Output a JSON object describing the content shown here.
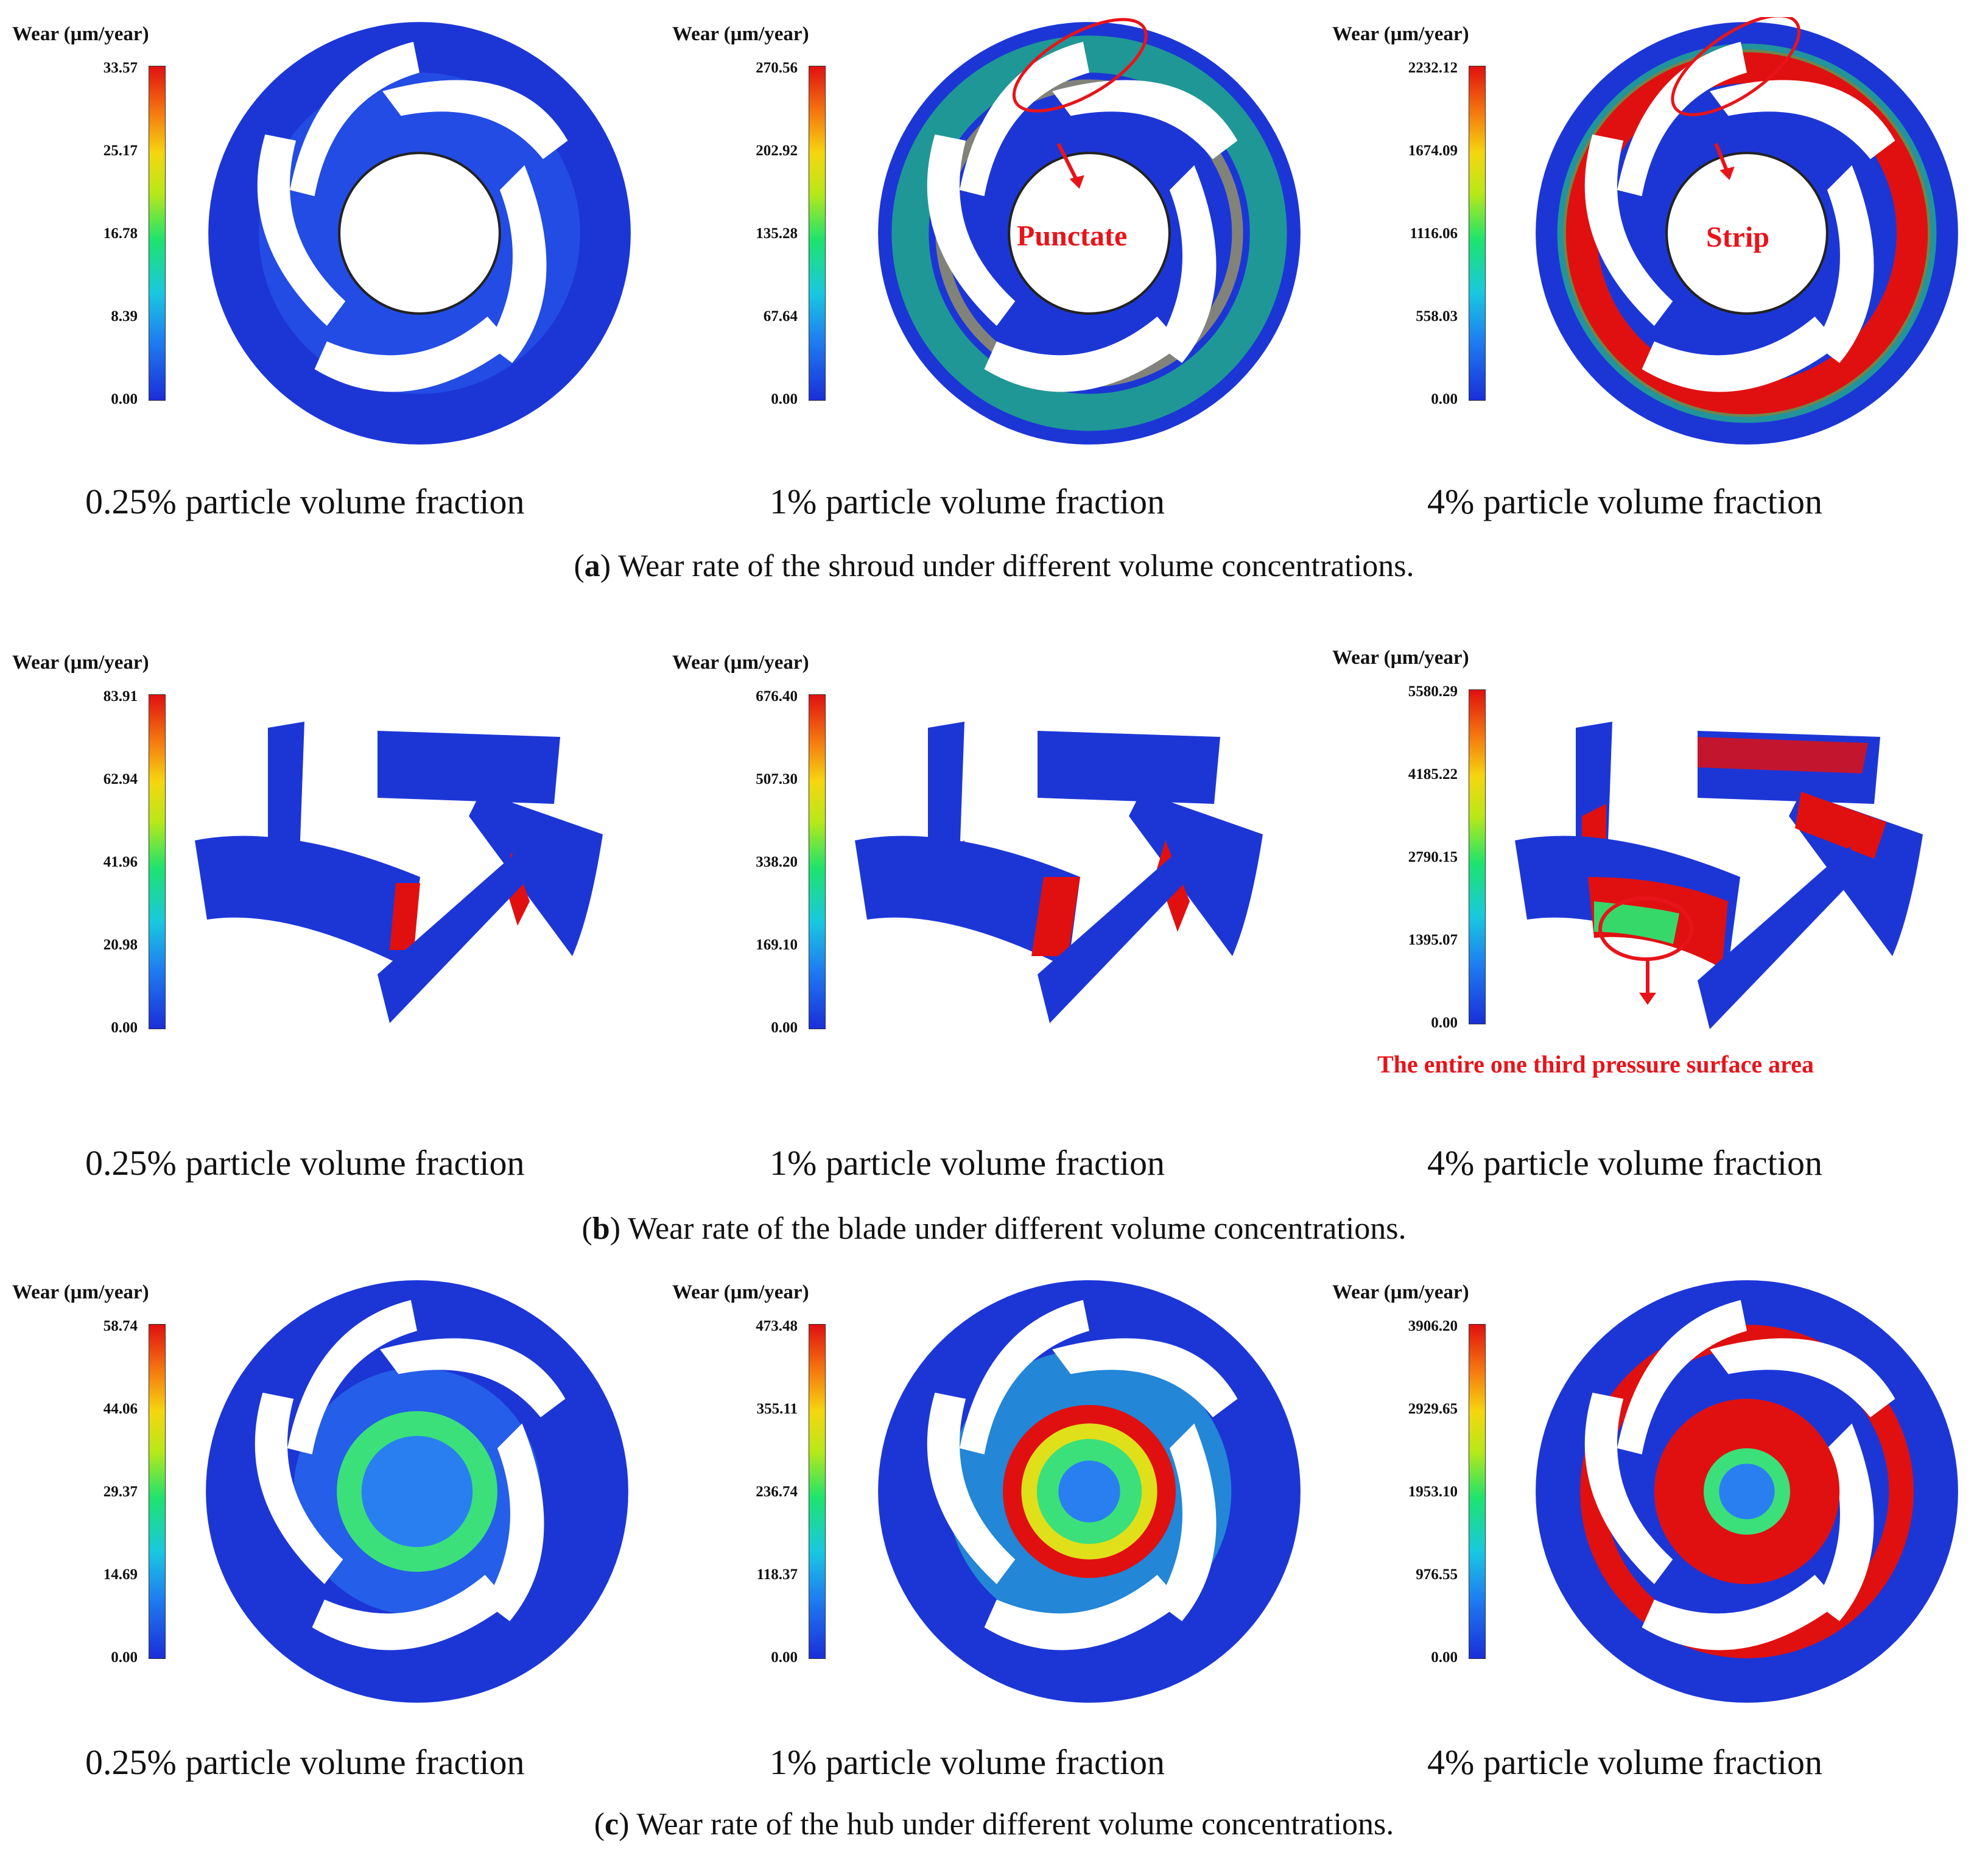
{
  "legend_title": "Wear (µm/year)",
  "column_labels": [
    "0.25% particle volume fraction",
    "1% particle volume fraction",
    "4% particle volume fraction"
  ],
  "rows": [
    {
      "caption": {
        "label": "a",
        "text": ") Wear rate of the shroud under different volume concentrations."
      },
      "colorbars": [
        [
          "33.57",
          "25.17",
          "16.78",
          "8.39",
          "0.00"
        ],
        [
          "270.56",
          "202.92",
          "135.28",
          "67.64",
          "0.00"
        ],
        [
          "2232.12",
          "1674.09",
          "1116.06",
          "558.03",
          "0.00"
        ]
      ],
      "annotations": [
        "Punctate",
        "Strip"
      ]
    },
    {
      "caption": {
        "label": "b",
        "text": ") Wear rate of the blade under different volume concentrations."
      },
      "colorbars": [
        [
          "83.91",
          "62.94",
          "41.96",
          "20.98",
          "0.00"
        ],
        [
          "676.40",
          "507.30",
          "338.20",
          "169.10",
          "0.00"
        ],
        [
          "5580.29",
          "4185.22",
          "2790.15",
          "1395.07",
          "0.00"
        ]
      ],
      "annotations": [
        "The entire one third pressure surface area"
      ]
    },
    {
      "caption": {
        "label": "c",
        "text": ") Wear rate of the hub under different volume concentrations."
      },
      "colorbars": [
        [
          "58.74",
          "44.06",
          "29.37",
          "14.69",
          "0.00"
        ],
        [
          "473.48",
          "355.11",
          "236.74",
          "118.37",
          "0.00"
        ],
        [
          "3906.20",
          "2929.65",
          "1953.10",
          "976.55",
          "0.00"
        ]
      ],
      "annotations": []
    }
  ],
  "colors": {
    "low": "#1a2fd8",
    "high": "#e01010",
    "annotation": "#e8141a"
  }
}
